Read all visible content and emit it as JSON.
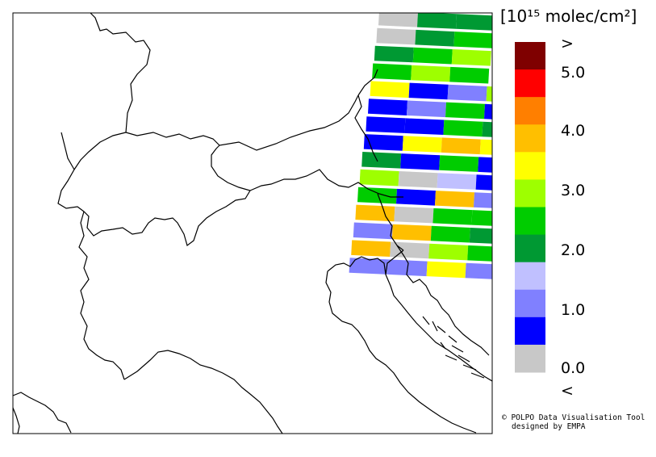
{
  "legend": {
    "unit": "[10¹⁵ molec/cm²]",
    "labels": [
      ">",
      "5.0",
      "4.0",
      "3.0",
      "2.0",
      "1.0",
      "0.0",
      "<"
    ],
    "colors": [
      "#7f0000",
      "#ff0000",
      "#ff7f00",
      "#ffbf00",
      "#ffff00",
      "#9eff00",
      "#00cc00",
      "#009933",
      "#c0c0ff",
      "#8080ff",
      "#0000ff",
      "#c8c8c8"
    ]
  },
  "credits": {
    "line1": "© POLPO Data Visualisation Tool",
    "line2": "designed by EMPA"
  },
  "swath_rows": [
    [
      0,
      1,
      1
    ],
    [
      0,
      1,
      2
    ],
    [
      1,
      2,
      3
    ],
    [
      2,
      3,
      2
    ],
    [
      4,
      5,
      6,
      3
    ],
    [
      5,
      6,
      2,
      5
    ],
    [
      5,
      7,
      2,
      1
    ],
    [
      5,
      4,
      8,
      4
    ],
    [
      1,
      5,
      2,
      5
    ],
    [
      3,
      0,
      9,
      5
    ],
    [
      2,
      5,
      8,
      6
    ],
    [
      8,
      0,
      2,
      2
    ],
    [
      6,
      8,
      2,
      1
    ],
    [
      8,
      0,
      3,
      2
    ],
    [
      6,
      6,
      4,
      6
    ]
  ],
  "swath_colors": [
    "#c8c8c8",
    "#009933",
    "#00cc00",
    "#9eff00",
    "#ffff00",
    "#0000ff",
    "#8080ff",
    "#0000ff",
    "#ffbf00",
    "#c0c0ff"
  ]
}
